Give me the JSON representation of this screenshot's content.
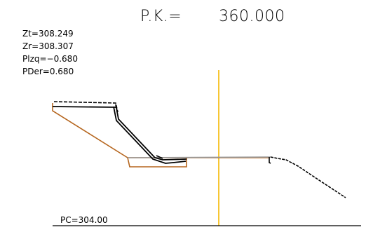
{
  "header": {
    "pk_label": "P.K.=",
    "pk_value": "360.000"
  },
  "elevations": {
    "zt": "Zt=308.249",
    "zr": "Zr=308.307",
    "plzq": "Plzq=−0.680",
    "pder": "PDer=0.680"
  },
  "datum": {
    "label": "PC=304.00"
  },
  "colors": {
    "terrain": "#000000",
    "design": "#b5651d",
    "axis": "#f5b800",
    "pavement": "#999999"
  }
}
